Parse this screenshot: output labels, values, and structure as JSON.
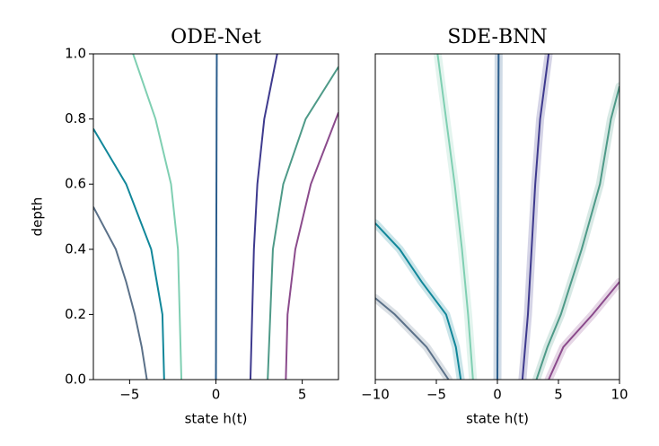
{
  "chart_data": [
    {
      "type": "line",
      "title": "ODE-Net",
      "xlabel": "state h(t)",
      "ylabel": "depth",
      "xlim": [
        -7.1,
        7.1
      ],
      "xticks": [
        {
          "value": -5,
          "label": "−5"
        },
        0,
        5
      ],
      "ylim": [
        0,
        1
      ],
      "yticks": [
        {
          "value": 0,
          "label": "0.0"
        },
        0.2,
        0.4,
        0.6,
        0.8,
        {
          "value": 1,
          "label": "1.0"
        }
      ],
      "series": [
        {
          "color": "#5b7189",
          "values": [
            -4.0,
            -4.3,
            -4.7,
            -5.2,
            -5.8,
            -7.1
          ],
          "y": [
            0,
            0.1,
            0.2,
            0.3,
            0.4,
            0.53
          ]
        },
        {
          "color": "#12879a",
          "values": [
            -3.0,
            -3.1,
            -3.75,
            -5.2,
            -7.1
          ],
          "y": [
            0,
            0.2,
            0.4,
            0.6,
            0.77
          ]
        },
        {
          "color": "#7fcfb2",
          "values": [
            -2.0,
            -2.2,
            -2.6,
            -3.5,
            -4.8
          ],
          "y": [
            0,
            0.4,
            0.6,
            0.8,
            1
          ]
        },
        {
          "color": "#2b5d8c",
          "values": [
            0,
            0.05
          ],
          "y": [
            0,
            1
          ]
        },
        {
          "color": "#3e3a8e",
          "values": [
            2.0,
            2.2,
            2.4,
            2.8,
            3.55
          ],
          "y": [
            0,
            0.4,
            0.6,
            0.8,
            1
          ]
        },
        {
          "color": "#4e9a88",
          "values": [
            3.0,
            3.3,
            3.9,
            5.2,
            7.1
          ],
          "y": [
            0,
            0.4,
            0.6,
            0.8,
            0.96
          ]
        },
        {
          "color": "#8b4b8c",
          "values": [
            4.05,
            4.15,
            4.6,
            5.5,
            7.1
          ],
          "y": [
            0,
            0.2,
            0.4,
            0.6,
            0.82
          ]
        }
      ]
    },
    {
      "type": "line",
      "title": "SDE-BNN",
      "xlabel": "state h(t)",
      "xlim": [
        -10,
        10
      ],
      "xticks": [
        {
          "value": -10,
          "label": "−10"
        },
        {
          "value": -5,
          "label": "−5"
        },
        0,
        5,
        10
      ],
      "ylim": [
        0,
        1
      ],
      "spread": true,
      "series": [
        {
          "color": "#5b7189",
          "values": [
            -4.0,
            -5.8,
            -8.4,
            -10
          ],
          "y": [
            0,
            0.1,
            0.2,
            0.25
          ]
        },
        {
          "color": "#12879a",
          "values": [
            -3.0,
            -3.4,
            -4.2,
            -6.2,
            -8.0,
            -10
          ],
          "y": [
            0,
            0.1,
            0.2,
            0.3,
            0.4,
            0.48
          ]
        },
        {
          "color": "#7fcfb2",
          "values": [
            -2.0,
            -2.4,
            -2.9,
            -3.5,
            -4.2,
            -4.9
          ],
          "y": [
            0,
            0.2,
            0.4,
            0.6,
            0.8,
            1
          ]
        },
        {
          "color": "#2b5d8c",
          "values": [
            0,
            0.1
          ],
          "y": [
            0,
            1
          ]
        },
        {
          "color": "#3e3a8e",
          "values": [
            2.05,
            2.5,
            2.8,
            3.1,
            3.5,
            4.2
          ],
          "y": [
            0,
            0.2,
            0.4,
            0.6,
            0.8,
            1
          ]
        },
        {
          "color": "#4e9a88",
          "values": [
            3.2,
            4.1,
            5.2,
            6.9,
            8.4,
            9.3,
            10
          ],
          "y": [
            0,
            0.1,
            0.2,
            0.4,
            0.6,
            0.8,
            0.9
          ]
        },
        {
          "color": "#8b4b8c",
          "values": [
            4.2,
            5.4,
            7.8,
            10
          ],
          "y": [
            0,
            0.1,
            0.2,
            0.3
          ]
        }
      ]
    }
  ]
}
